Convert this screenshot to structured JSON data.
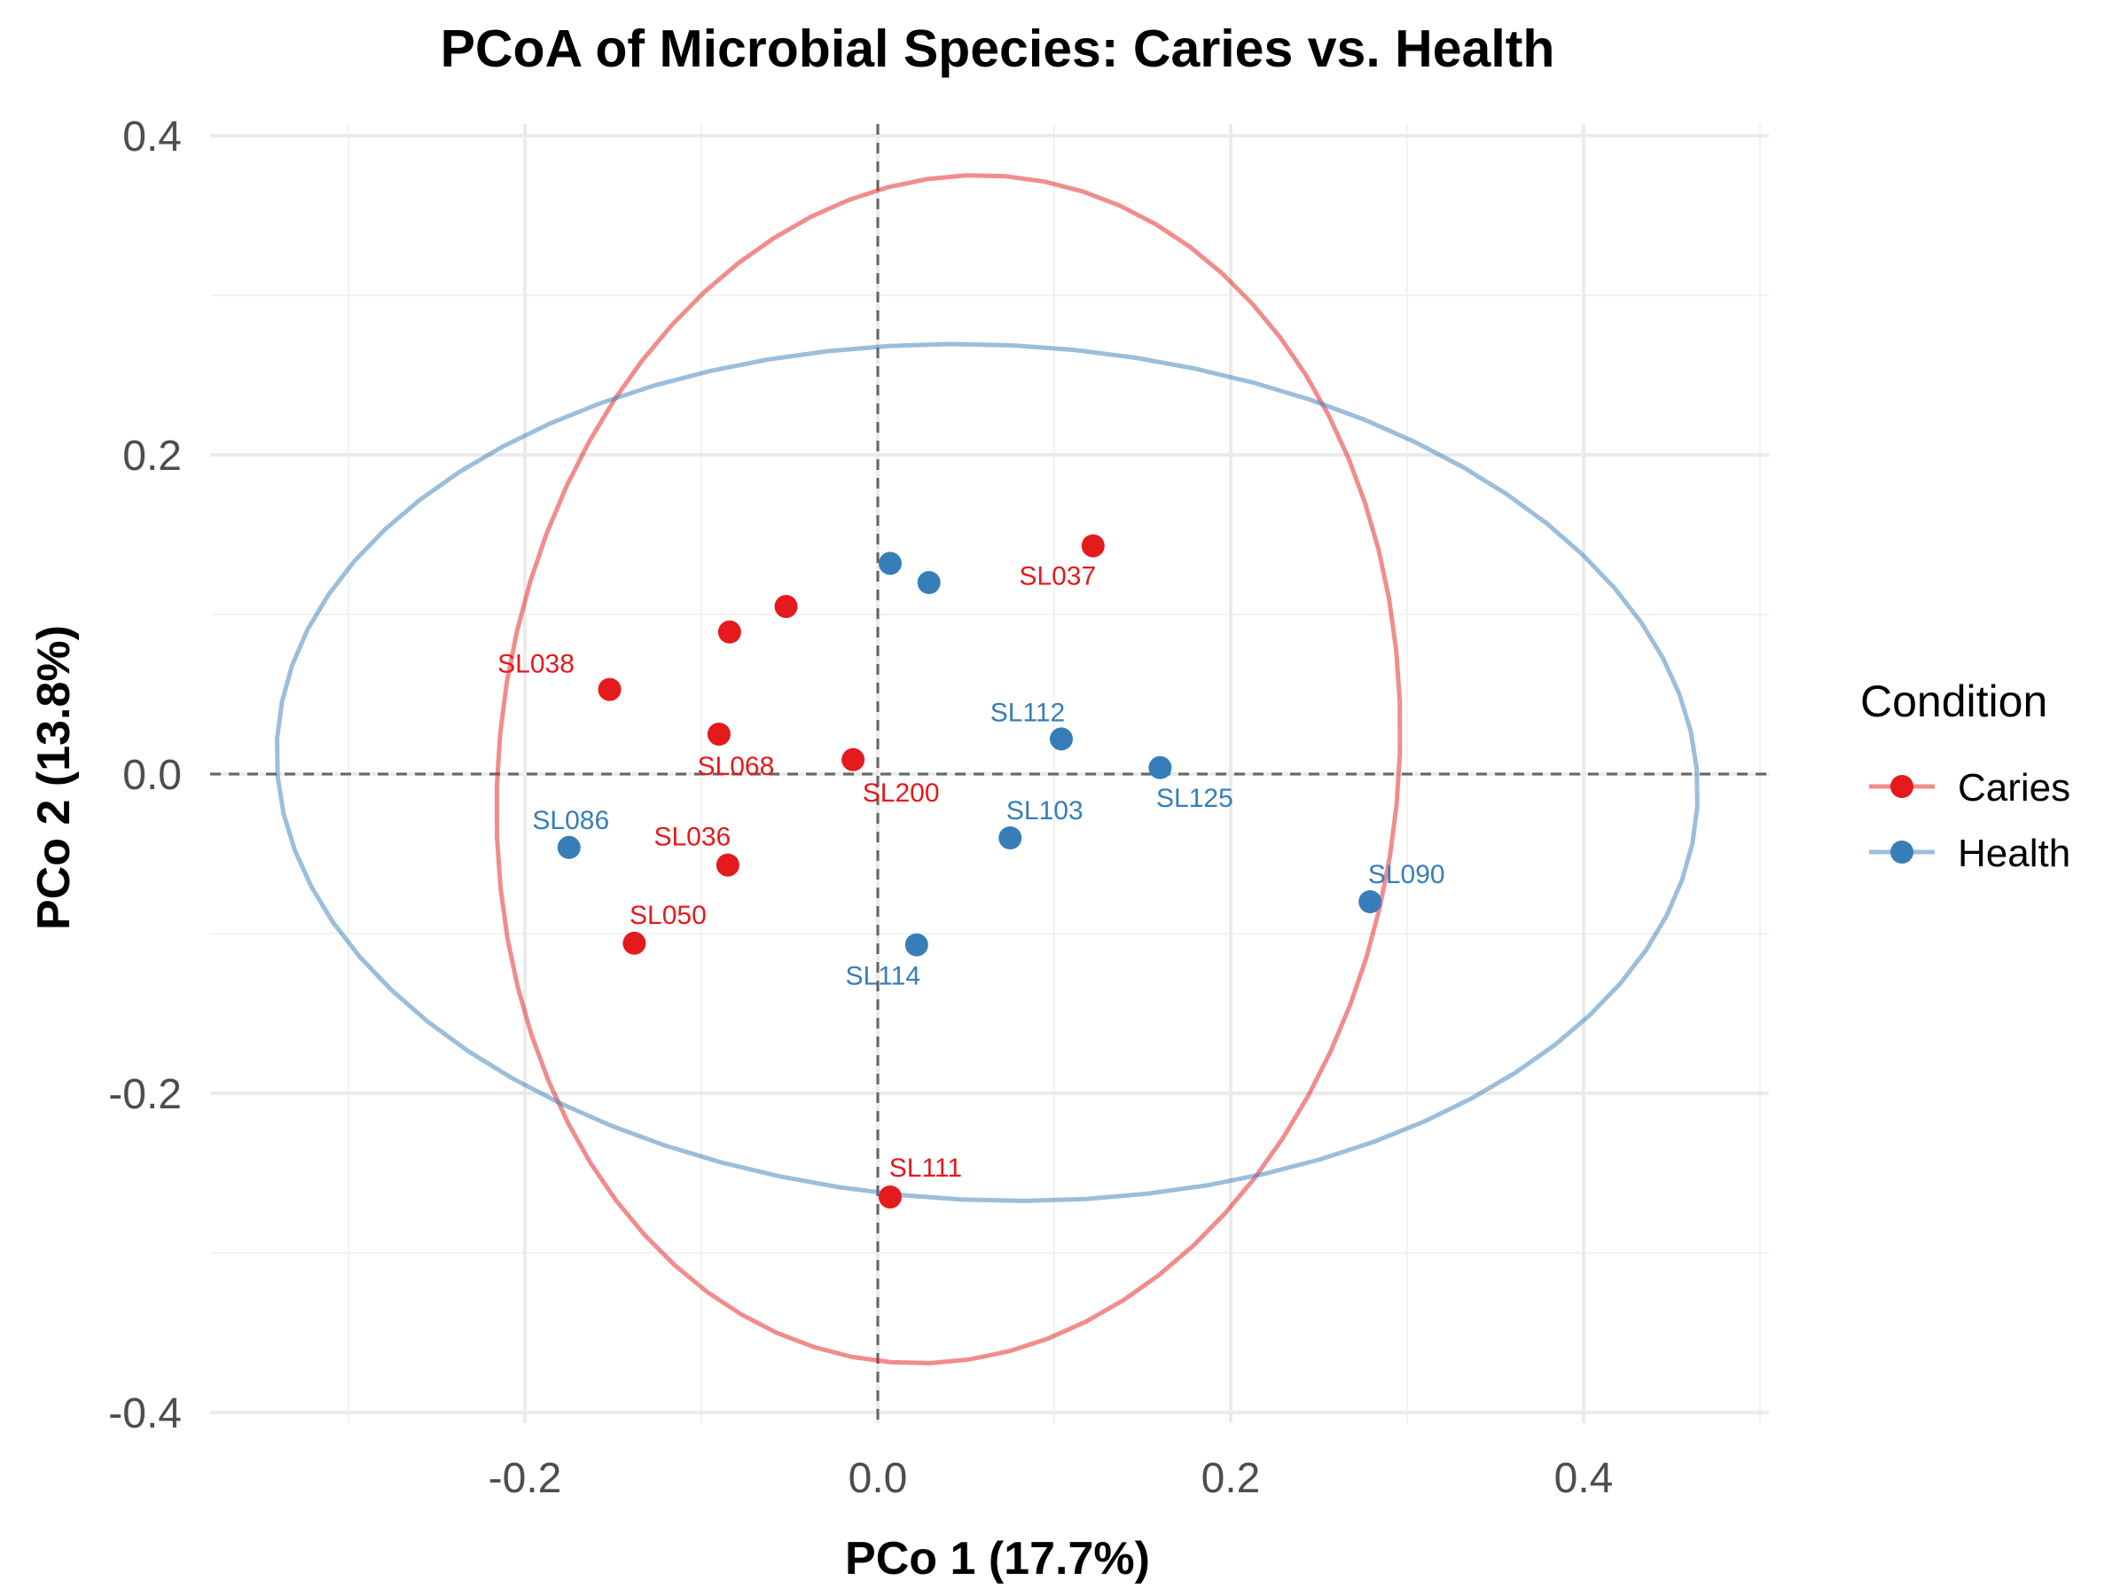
{
  "chart_data": {
    "type": "scatter",
    "title": "PCoA of Microbial Species: Caries vs. Health",
    "xlabel": "PCo 1 (17.7%)",
    "ylabel": "PCo 2 (13.8%)",
    "xlim": [
      -0.38,
      0.5
    ],
    "ylim": [
      -0.41,
      0.41
    ],
    "xticks": [
      -0.2,
      0.0,
      0.2,
      0.4
    ],
    "xtick_labels": [
      "-0.2",
      "0.0",
      "0.2",
      "0.4"
    ],
    "yticks": [
      -0.4,
      -0.2,
      0.0,
      0.2,
      0.4
    ],
    "ytick_labels": [
      "-0.4",
      "-0.2",
      "0.0",
      "0.2",
      "0.4"
    ],
    "grid": true,
    "reference_lines": {
      "x": 0,
      "y": 0,
      "style": "dashed"
    },
    "legend": {
      "title": "Condition",
      "position": "right",
      "entries": [
        "Caries",
        "Health"
      ]
    },
    "series": [
      {
        "name": "Caries",
        "color": "#e41a1c",
        "points": [
          {
            "x": 0.122,
            "y": 0.143,
            "label": "SL037"
          },
          {
            "x": -0.152,
            "y": 0.053,
            "label": "SL038"
          },
          {
            "x": -0.052,
            "y": 0.105,
            "label": ""
          },
          {
            "x": -0.084,
            "y": 0.089,
            "label": ""
          },
          {
            "x": -0.09,
            "y": 0.025,
            "label": "SL068"
          },
          {
            "x": -0.014,
            "y": 0.009,
            "label": "SL200"
          },
          {
            "x": -0.085,
            "y": -0.057,
            "label": "SL036"
          },
          {
            "x": -0.138,
            "y": -0.106,
            "label": "SL050"
          },
          {
            "x": 0.007,
            "y": -0.265,
            "label": "SL111"
          }
        ],
        "ellipse": {
          "cx": 0.04,
          "cy": 0.003,
          "rx": 0.255,
          "ry": 0.373,
          "angle_deg": -5
        }
      },
      {
        "name": "Health",
        "color": "#377eb8",
        "points": [
          {
            "x": 0.007,
            "y": 0.132,
            "label": ""
          },
          {
            "x": 0.029,
            "y": 0.12,
            "label": ""
          },
          {
            "x": 0.104,
            "y": 0.022,
            "label": "SL112"
          },
          {
            "x": 0.16,
            "y": 0.004,
            "label": "SL125"
          },
          {
            "x": 0.075,
            "y": -0.04,
            "label": "SL103"
          },
          {
            "x": -0.175,
            "y": -0.046,
            "label": "SL086"
          },
          {
            "x": 0.279,
            "y": -0.08,
            "label": "SL090"
          },
          {
            "x": 0.022,
            "y": -0.107,
            "label": "SL114"
          }
        ],
        "ellipse": {
          "cx": 0.062,
          "cy": 0.001,
          "rx": 0.403,
          "ry": 0.268,
          "angle_deg": -3
        }
      }
    ]
  }
}
